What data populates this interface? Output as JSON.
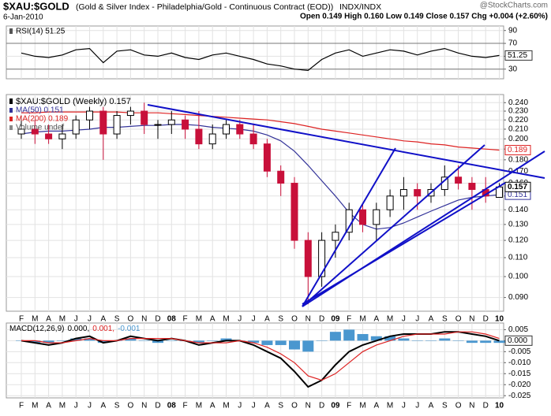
{
  "header": {
    "title": "$XAU:$GOLD",
    "subtitle": "(Gold & Silver Index - Philadelphia/Gold - Continuous Contract (EOD))",
    "exchange": "INDX/INDX",
    "date": "6-Jan-2010",
    "quote": "Open 0.149 High 0.160 Low 0.149 Close 0.157 Chg +0.004 (+2.60%)",
    "credit": "@StockCharts.com"
  },
  "chart_data": [
    {
      "type": "line",
      "series": [
        {
          "name": "RSI(14) 51.25",
          "color": "#000000",
          "values": [
            55,
            50,
            48,
            52,
            60,
            62,
            40,
            58,
            60,
            52,
            50,
            55,
            48,
            45,
            52,
            55,
            50,
            45,
            38,
            35,
            30,
            28,
            45,
            55,
            60,
            50,
            55,
            60,
            58,
            52,
            58,
            62,
            55,
            50,
            48,
            51.25
          ]
        }
      ],
      "ylim": [
        15,
        97
      ],
      "yticks": [
        90,
        70,
        50,
        30
      ],
      "levels": [
        70,
        30
      ],
      "grid": true
    },
    {
      "type": "candlestick",
      "name": "$XAU:$GOLD (Weekly) 0.157",
      "extra_legend": "Volume undef",
      "categories": [
        "F",
        "M",
        "A",
        "M",
        "J",
        "J",
        "A",
        "S",
        "O",
        "N",
        "D",
        "08",
        "F",
        "M",
        "A",
        "M",
        "J",
        "J",
        "A",
        "S",
        "O",
        "N",
        "D",
        "09",
        "F",
        "M",
        "A",
        "M",
        "J",
        "J",
        "A",
        "S",
        "O",
        "N",
        "D",
        "10"
      ],
      "open": [
        0.205,
        0.21,
        0.205,
        0.2,
        0.205,
        0.22,
        0.23,
        0.205,
        0.225,
        0.23,
        0.215,
        0.215,
        0.22,
        0.21,
        0.195,
        0.205,
        0.215,
        0.205,
        0.195,
        0.17,
        0.16,
        0.12,
        0.1,
        0.12,
        0.125,
        0.14,
        0.13,
        0.14,
        0.15,
        0.155,
        0.15,
        0.155,
        0.165,
        0.16,
        0.155,
        0.149
      ],
      "high": [
        0.225,
        0.22,
        0.215,
        0.215,
        0.225,
        0.235,
        0.235,
        0.23,
        0.235,
        0.24,
        0.22,
        0.23,
        0.225,
        0.23,
        0.215,
        0.22,
        0.22,
        0.215,
        0.2,
        0.175,
        0.165,
        0.125,
        0.125,
        0.13,
        0.145,
        0.145,
        0.145,
        0.155,
        0.165,
        0.16,
        0.16,
        0.175,
        0.175,
        0.165,
        0.165,
        0.16
      ],
      "low": [
        0.2,
        0.195,
        0.195,
        0.19,
        0.2,
        0.21,
        0.18,
        0.2,
        0.215,
        0.205,
        0.2,
        0.205,
        0.2,
        0.19,
        0.19,
        0.2,
        0.2,
        0.19,
        0.165,
        0.15,
        0.115,
        0.087,
        0.095,
        0.11,
        0.12,
        0.125,
        0.12,
        0.135,
        0.14,
        0.14,
        0.145,
        0.15,
        0.155,
        0.14,
        0.145,
        0.149
      ],
      "close": [
        0.21,
        0.205,
        0.2,
        0.205,
        0.22,
        0.23,
        0.205,
        0.225,
        0.23,
        0.215,
        0.215,
        0.22,
        0.21,
        0.195,
        0.205,
        0.215,
        0.205,
        0.195,
        0.17,
        0.16,
        0.12,
        0.1,
        0.12,
        0.125,
        0.14,
        0.13,
        0.14,
        0.15,
        0.155,
        0.15,
        0.155,
        0.165,
        0.16,
        0.155,
        0.15,
        0.157
      ],
      "up_color": "#000000",
      "down_color": "#c8103a",
      "series": [
        {
          "name": "MA(50) 0.151",
          "color": "#333399",
          "values": [
            0.205,
            0.207,
            0.208,
            0.208,
            0.209,
            0.21,
            0.212,
            0.212,
            0.213,
            0.214,
            0.214,
            0.215,
            0.215,
            0.214,
            0.212,
            0.211,
            0.21,
            0.208,
            0.204,
            0.198,
            0.188,
            0.175,
            0.162,
            0.15,
            0.138,
            0.13,
            0.127,
            0.128,
            0.131,
            0.135,
            0.139,
            0.143,
            0.147,
            0.149,
            0.15,
            0.151
          ]
        },
        {
          "name": "MA(200) 0.189",
          "color": "#dd2222",
          "values": [
            0.228,
            0.228,
            0.229,
            0.229,
            0.229,
            0.229,
            0.229,
            0.229,
            0.228,
            0.228,
            0.228,
            0.227,
            0.226,
            0.225,
            0.224,
            0.223,
            0.222,
            0.221,
            0.22,
            0.218,
            0.216,
            0.213,
            0.21,
            0.208,
            0.206,
            0.204,
            0.202,
            0.2,
            0.198,
            0.197,
            0.195,
            0.194,
            0.192,
            0.191,
            0.19,
            0.189
          ]
        }
      ],
      "ylim": [
        0.084,
        0.25
      ],
      "log": true,
      "grid": true,
      "yticks": [
        {
          "value": 0.09,
          "label": "0.090"
        },
        {
          "value": 0.1,
          "label": "0.100"
        },
        {
          "value": 0.11,
          "label": "0.110"
        },
        {
          "value": 0.12,
          "label": "0.120"
        },
        {
          "value": 0.13,
          "label": "0.130"
        },
        {
          "value": 0.14,
          "label": "0.140"
        },
        {
          "value": 0.15,
          "label": "0.150"
        },
        {
          "value": 0.16,
          "label": "0.160"
        },
        {
          "value": 0.17,
          "label": "0.170"
        },
        {
          "value": 0.18,
          "label": "0.180"
        },
        {
          "value": 0.19,
          "label": "0.190"
        },
        {
          "value": 0.2,
          "label": "0.200"
        },
        {
          "value": 0.21,
          "label": "0.210"
        },
        {
          "value": 0.22,
          "label": "0.220"
        },
        {
          "value": 0.23,
          "label": "0.230"
        },
        {
          "value": 0.24,
          "label": "0.240"
        }
      ]
    },
    {
      "type": "line",
      "title": "MACD(12,26,9)",
      "categories": [
        "F",
        "M",
        "A",
        "M",
        "J",
        "J",
        "A",
        "S",
        "O",
        "N",
        "D",
        "08",
        "F",
        "M",
        "A",
        "M",
        "J",
        "J",
        "A",
        "S",
        "O",
        "N",
        "D",
        "09",
        "F",
        "M",
        "A",
        "M",
        "J",
        "J",
        "A",
        "S",
        "O",
        "N",
        "D",
        "10"
      ],
      "series": [
        {
          "label": "0.000,",
          "end_label": "0.000",
          "color": "#000000",
          "values": [
            0.0,
            -0.001,
            -0.002,
            -0.001,
            0.001,
            0.002,
            -0.001,
            0.0,
            0.002,
            0.001,
            0.0,
            0.001,
            0.0,
            -0.002,
            -0.001,
            0.0,
            0.0,
            -0.002,
            -0.005,
            -0.008,
            -0.014,
            -0.021,
            -0.018,
            -0.011,
            -0.005,
            -0.002,
            0.0,
            0.002,
            0.003,
            0.003,
            0.003,
            0.004,
            0.004,
            0.003,
            0.002,
            0.0
          ]
        },
        {
          "label": "0.001,",
          "color": "#dd2222",
          "values": [
            0.0,
            0.0,
            -0.001,
            -0.001,
            0.0,
            0.001,
            0.0,
            0.0,
            0.001,
            0.001,
            0.001,
            0.001,
            0.0,
            -0.001,
            -0.001,
            -0.001,
            0.0,
            -0.001,
            -0.003,
            -0.006,
            -0.01,
            -0.016,
            -0.018,
            -0.015,
            -0.01,
            -0.005,
            -0.002,
            0.0,
            0.002,
            0.003,
            0.003,
            0.003,
            0.004,
            0.004,
            0.003,
            0.001
          ]
        },
        {
          "label": "-0.001",
          "kind": "bar",
          "color": "#4a97cf",
          "values": [
            0.0,
            -0.001,
            -0.001,
            0.0,
            0.001,
            0.001,
            -0.001,
            0.0,
            0.001,
            0.0,
            -0.001,
            0.0,
            0.0,
            -0.001,
            0.0,
            0.001,
            0.0,
            -0.001,
            -0.002,
            -0.002,
            -0.004,
            -0.005,
            0.0,
            0.004,
            0.005,
            0.003,
            0.002,
            0.002,
            0.001,
            0.0,
            0.0,
            0.001,
            0.0,
            -0.001,
            -0.001,
            -0.001
          ]
        }
      ],
      "ylim": [
        -0.026,
        0.008
      ],
      "grid": true,
      "yticks": [
        {
          "value": 0.005,
          "label": "0.005"
        },
        {
          "value": 0.0,
          "label": "0.000"
        },
        {
          "value": -0.005,
          "label": "-0.005"
        },
        {
          "value": -0.01,
          "label": "-0.010"
        },
        {
          "value": -0.015,
          "label": "-0.015"
        },
        {
          "value": -0.02,
          "label": "-0.020"
        },
        {
          "value": -0.025,
          "label": "-0.025"
        }
      ]
    }
  ]
}
